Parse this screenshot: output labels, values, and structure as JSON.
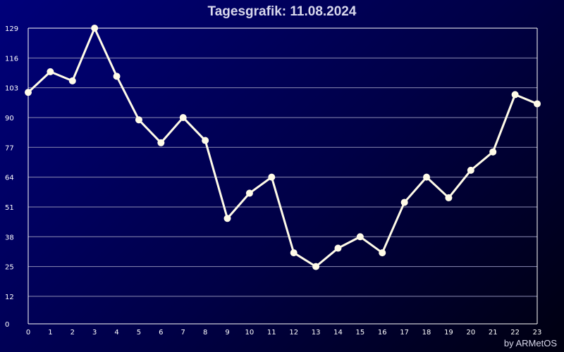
{
  "chart_data": {
    "type": "line",
    "title": "Tagesgrafik: 11.08.2024",
    "xlabel": "",
    "ylabel": "",
    "x": [
      0,
      1,
      2,
      3,
      4,
      5,
      6,
      7,
      8,
      9,
      10,
      11,
      12,
      13,
      14,
      15,
      16,
      17,
      18,
      19,
      20,
      21,
      22,
      23
    ],
    "values": [
      101,
      110,
      106,
      129,
      108,
      89,
      79,
      90,
      80,
      46,
      57,
      64,
      31,
      25,
      33,
      38,
      31,
      53,
      64,
      55,
      67,
      75,
      100,
      96
    ],
    "xticks": [
      "0",
      "1",
      "2",
      "3",
      "4",
      "5",
      "6",
      "7",
      "8",
      "9",
      "10",
      "11",
      "12",
      "13",
      "14",
      "15",
      "16",
      "17",
      "18",
      "19",
      "20",
      "21",
      "22",
      "23"
    ],
    "yticks": [
      "0",
      "12",
      "25",
      "38",
      "51",
      "64",
      "77",
      "90",
      "103",
      "116",
      "129"
    ],
    "ylim": [
      0,
      129
    ],
    "grid": true,
    "line_color": "#fffbe8",
    "grid_color": "#8c8cb4",
    "axis_color": "#ffffff"
  },
  "footer": {
    "credit": "by ARMetOS"
  }
}
